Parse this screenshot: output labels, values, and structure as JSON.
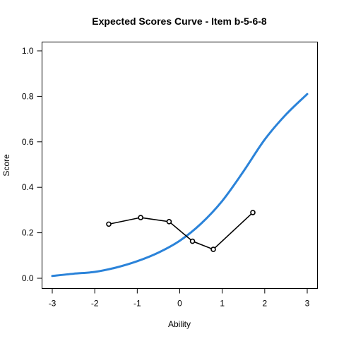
{
  "chart_data": {
    "type": "line",
    "title": "Expected Scores Curve - Item  b-5-6-8",
    "xlabel": "Ability",
    "ylabel": "Score",
    "xlim": [
      -3,
      3
    ],
    "ylim": [
      0,
      1
    ],
    "xticks": [
      "-3",
      "-2",
      "-1",
      "0",
      "1",
      "2",
      "3"
    ],
    "yticks": [
      "0.0",
      "0.2",
      "0.4",
      "0.6",
      "0.8",
      "1.0"
    ],
    "grid": false,
    "legend": "none",
    "series": [
      {
        "style": "smooth-line",
        "color": "#2b83d9",
        "x": [
          -3.0,
          -2.5,
          -2.0,
          -1.5,
          -1.0,
          -0.5,
          0.0,
          0.5,
          1.0,
          1.5,
          2.0,
          2.5,
          3.0
        ],
        "y": [
          0.01,
          0.02,
          0.028,
          0.047,
          0.075,
          0.113,
          0.165,
          0.24,
          0.34,
          0.47,
          0.61,
          0.72,
          0.81
        ]
      },
      {
        "style": "line-with-circles",
        "color": "#000000",
        "x": [
          -1.67,
          -0.92,
          -0.25,
          0.3,
          0.79,
          1.72
        ],
        "y": [
          0.238,
          0.267,
          0.249,
          0.163,
          0.127,
          0.289
        ]
      }
    ]
  }
}
